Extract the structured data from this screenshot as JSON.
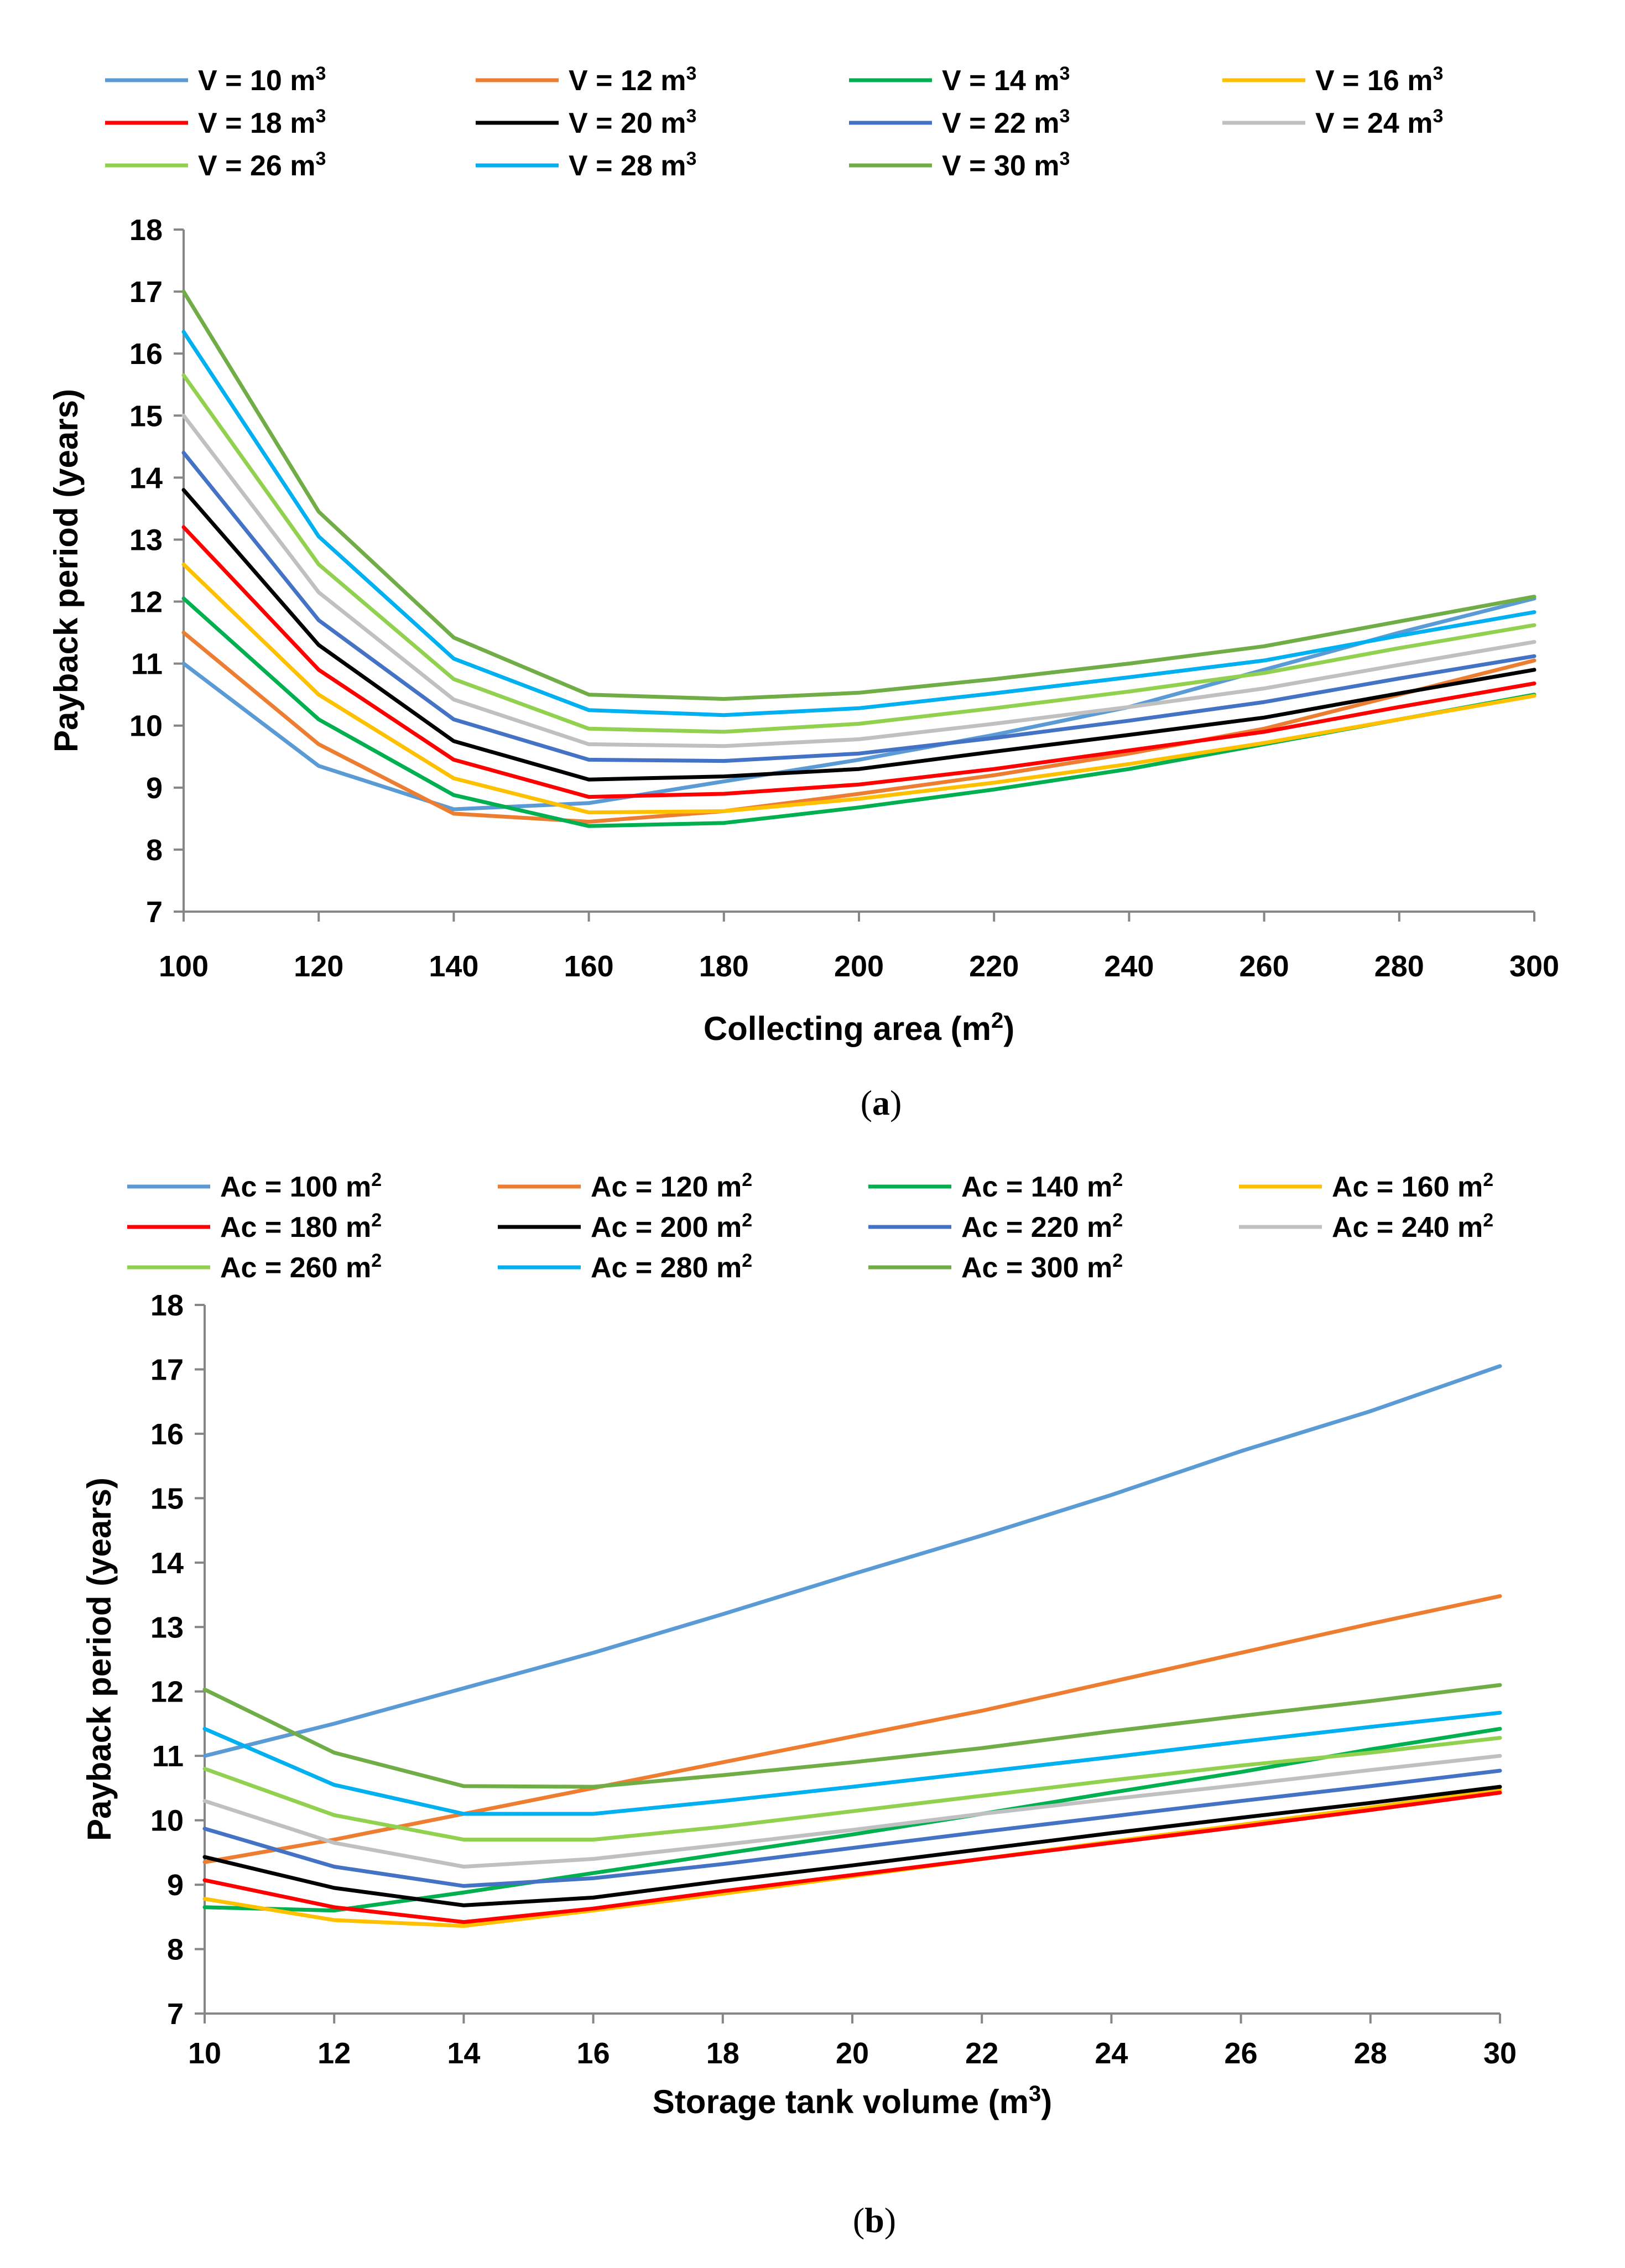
{
  "chart_data": [
    {
      "type": "line",
      "caption_open": "(",
      "caption_letter": "a",
      "caption_close": ")",
      "xlabel_main": "Collecting area (m",
      "xlabel_sup": "2",
      "xlabel_end": ")",
      "ylabel": "Payback period (years)",
      "x": [
        100,
        120,
        140,
        160,
        180,
        200,
        220,
        240,
        260,
        280,
        300
      ],
      "xlim": [
        100,
        300
      ],
      "ylim": [
        7,
        18
      ],
      "xticks": [
        "100",
        "120",
        "140",
        "160",
        "180",
        "200",
        "220",
        "240",
        "260",
        "280",
        "300"
      ],
      "yticks": [
        "7",
        "8",
        "9",
        "10",
        "11",
        "12",
        "13",
        "14",
        "15",
        "16",
        "17",
        "18"
      ],
      "legend_position": "top",
      "series": [
        {
          "name_main": "V = 10 m",
          "name_sup": "3",
          "color": "#5B9BD5",
          "values": [
            11.0,
            9.35,
            8.65,
            8.75,
            9.1,
            9.45,
            9.85,
            10.3,
            10.9,
            11.5,
            12.05
          ]
        },
        {
          "name_main": "V = 12 m",
          "name_sup": "3",
          "color": "#ED7D31",
          "values": [
            11.5,
            9.7,
            8.58,
            8.45,
            8.62,
            8.9,
            9.2,
            9.55,
            9.95,
            10.5,
            11.05
          ]
        },
        {
          "name_main": "V = 14 m",
          "name_sup": "3",
          "color": "#00B050",
          "values": [
            12.05,
            10.1,
            8.88,
            8.38,
            8.43,
            8.68,
            8.97,
            9.3,
            9.7,
            10.1,
            10.5
          ]
        },
        {
          "name_main": "V = 16 m",
          "name_sup": "3",
          "color": "#FFC000",
          "values": [
            12.6,
            10.5,
            9.15,
            8.6,
            8.62,
            8.82,
            9.08,
            9.38,
            9.72,
            10.1,
            10.48
          ]
        },
        {
          "name_main": "V = 18 m",
          "name_sup": "3",
          "color": "#FF0000",
          "values": [
            13.2,
            10.9,
            9.45,
            8.85,
            8.9,
            9.05,
            9.3,
            9.6,
            9.9,
            10.3,
            10.68
          ]
        },
        {
          "name_main": "V = 20 m",
          "name_sup": "3",
          "color": "#000000",
          "values": [
            13.8,
            11.3,
            9.75,
            9.13,
            9.18,
            9.3,
            9.58,
            9.85,
            10.13,
            10.52,
            10.9
          ]
        },
        {
          "name_main": "V = 22 m",
          "name_sup": "3",
          "color": "#4472C4",
          "values": [
            14.4,
            11.7,
            10.1,
            9.45,
            9.43,
            9.55,
            9.8,
            10.08,
            10.38,
            10.76,
            11.12
          ]
        },
        {
          "name_main": "V = 24 m",
          "name_sup": "3",
          "color": "#C0C0C0",
          "values": [
            15.0,
            12.15,
            10.42,
            9.7,
            9.67,
            9.78,
            10.03,
            10.3,
            10.6,
            10.98,
            11.35
          ]
        },
        {
          "name_main": "V = 26 m",
          "name_sup": "3",
          "color": "#92D050",
          "values": [
            15.65,
            12.6,
            10.75,
            9.95,
            9.9,
            10.03,
            10.28,
            10.55,
            10.85,
            11.25,
            11.62
          ]
        },
        {
          "name_main": "V = 28 m",
          "name_sup": "3",
          "color": "#00B0F0",
          "values": [
            16.35,
            13.05,
            11.08,
            10.25,
            10.17,
            10.28,
            10.52,
            10.78,
            11.05,
            11.45,
            11.83
          ]
        },
        {
          "name_main": "V = 30 m",
          "name_sup": "3",
          "color": "#70AD47",
          "values": [
            17.0,
            13.45,
            11.42,
            10.5,
            10.43,
            10.53,
            10.75,
            11.0,
            11.28,
            11.68,
            12.08
          ]
        }
      ]
    },
    {
      "type": "line",
      "caption_open": "(",
      "caption_letter": "b",
      "caption_close": ")",
      "xlabel_main": "Storage tank volume (m",
      "xlabel_sup": "3",
      "xlabel_end": ")",
      "ylabel": "Payback period (years)",
      "x": [
        10,
        12,
        14,
        16,
        18,
        20,
        22,
        24,
        26,
        28,
        30
      ],
      "xlim": [
        10,
        30
      ],
      "ylim": [
        7,
        18
      ],
      "xticks": [
        "10",
        "12",
        "14",
        "16",
        "18",
        "20",
        "22",
        "24",
        "26",
        "28",
        "30"
      ],
      "yticks": [
        "7",
        "8",
        "9",
        "10",
        "11",
        "12",
        "13",
        "14",
        "15",
        "16",
        "17",
        "18"
      ],
      "legend_position": "top",
      "series": [
        {
          "name_main": "Ac = 100 m",
          "name_sup": "2",
          "color": "#5B9BD5",
          "values": [
            11.0,
            11.5,
            12.05,
            12.6,
            13.2,
            13.82,
            14.42,
            15.05,
            15.73,
            16.35,
            17.05
          ]
        },
        {
          "name_main": "Ac = 120 m",
          "name_sup": "2",
          "color": "#ED7D31",
          "values": [
            9.35,
            9.7,
            10.1,
            10.5,
            10.9,
            11.3,
            11.7,
            12.15,
            12.6,
            13.05,
            13.48
          ]
        },
        {
          "name_main": "Ac = 140 m",
          "name_sup": "2",
          "color": "#00B050",
          "values": [
            8.65,
            8.6,
            8.88,
            9.18,
            9.48,
            9.78,
            10.1,
            10.43,
            10.75,
            11.1,
            11.42
          ]
        },
        {
          "name_main": "Ac = 160 m",
          "name_sup": "2",
          "color": "#FFC000",
          "values": [
            8.78,
            8.45,
            8.36,
            8.6,
            8.86,
            9.13,
            9.4,
            9.67,
            9.93,
            10.2,
            10.47
          ]
        },
        {
          "name_main": "Ac = 180 m",
          "name_sup": "2",
          "color": "#FF0000",
          "values": [
            9.07,
            8.65,
            8.42,
            8.63,
            8.9,
            9.15,
            9.4,
            9.65,
            9.9,
            10.16,
            10.43
          ]
        },
        {
          "name_main": "Ac = 200 m",
          "name_sup": "2",
          "color": "#000000",
          "values": [
            9.43,
            8.95,
            8.68,
            8.8,
            9.06,
            9.3,
            9.55,
            9.8,
            10.04,
            10.27,
            10.52
          ]
        },
        {
          "name_main": "Ac = 220 m",
          "name_sup": "2",
          "color": "#4472C4",
          "values": [
            9.87,
            9.28,
            8.98,
            9.1,
            9.32,
            9.57,
            9.82,
            10.06,
            10.3,
            10.53,
            10.77
          ]
        },
        {
          "name_main": "Ac = 240 m",
          "name_sup": "2",
          "color": "#C0C0C0",
          "values": [
            10.3,
            9.65,
            9.28,
            9.4,
            9.62,
            9.85,
            10.1,
            10.33,
            10.55,
            10.78,
            11.0
          ]
        },
        {
          "name_main": "Ac = 260 m",
          "name_sup": "2",
          "color": "#92D050",
          "values": [
            10.8,
            10.08,
            9.7,
            9.7,
            9.9,
            10.14,
            10.38,
            10.62,
            10.85,
            11.05,
            11.28
          ]
        },
        {
          "name_main": "Ac = 280 m",
          "name_sup": "2",
          "color": "#00B0F0",
          "values": [
            11.42,
            10.55,
            10.1,
            10.1,
            10.3,
            10.52,
            10.75,
            10.98,
            11.22,
            11.45,
            11.67
          ]
        },
        {
          "name_main": "Ac = 300 m",
          "name_sup": "2",
          "color": "#70AD47",
          "values": [
            12.03,
            11.05,
            10.53,
            10.52,
            10.7,
            10.9,
            11.12,
            11.38,
            11.62,
            11.85,
            12.1
          ]
        }
      ]
    }
  ]
}
